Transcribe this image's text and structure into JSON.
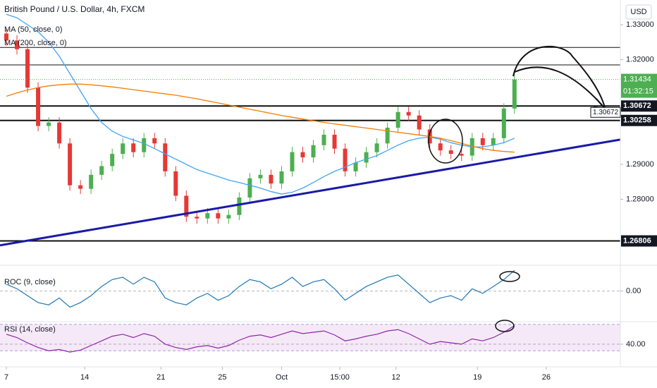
{
  "chart_data": [
    {
      "type": "candlestick",
      "title": "British Pound / U.S. Dollar, 4h, FXCM",
      "currency": "USD",
      "countdown": "01:32:15",
      "up_color": "#4caf50",
      "down_color": "#e53935",
      "open": [
        1.3275,
        1.3255,
        1.323,
        1.312,
        1.301,
        1.302,
        1.296,
        1.284,
        1.283,
        1.287,
        1.2895,
        1.293,
        1.296,
        1.2935,
        1.2975,
        1.296,
        1.288,
        1.281,
        1.275,
        1.2745,
        1.276,
        1.2745,
        1.2755,
        1.2805,
        1.286,
        1.287,
        1.2845,
        1.288,
        1.2935,
        1.292,
        1.2955,
        1.2985,
        1.2945,
        1.288,
        1.2905,
        1.2935,
        1.296,
        1.3005,
        1.305,
        1.304,
        1.3,
        1.296,
        1.294,
        1.293,
        1.2925,
        1.2975,
        1.2955,
        1.2975,
        1.306
      ],
      "high": [
        1.329,
        1.327,
        1.3245,
        1.3135,
        1.3035,
        1.3035,
        1.2975,
        1.2855,
        1.2885,
        1.291,
        1.2945,
        1.2975,
        1.2975,
        1.299,
        1.299,
        1.2975,
        1.2895,
        1.2825,
        1.2765,
        1.2775,
        1.2775,
        1.277,
        1.282,
        1.2875,
        1.2885,
        1.2885,
        1.2895,
        1.295,
        1.295,
        1.297,
        1.3,
        1.3,
        1.296,
        1.292,
        1.295,
        1.2975,
        1.302,
        1.3065,
        1.3065,
        1.3055,
        1.3015,
        1.2975,
        1.2955,
        1.2945,
        1.299,
        1.299,
        1.299,
        1.3075,
        1.316
      ],
      "low": [
        1.324,
        1.3215,
        1.3105,
        1.2995,
        1.2995,
        1.2945,
        1.2825,
        1.2815,
        1.2815,
        1.2855,
        1.288,
        1.2915,
        1.292,
        1.292,
        1.2945,
        1.2865,
        1.2795,
        1.2735,
        1.273,
        1.273,
        1.273,
        1.273,
        1.274,
        1.279,
        1.2845,
        1.283,
        1.283,
        1.2865,
        1.2905,
        1.2905,
        1.294,
        1.293,
        1.2865,
        1.2865,
        1.289,
        1.292,
        1.2945,
        1.299,
        1.3025,
        1.2985,
        1.2945,
        1.2925,
        1.2915,
        1.291,
        1.291,
        1.294,
        1.294,
        1.296,
        1.3045
      ],
      "close": [
        1.3255,
        1.323,
        1.312,
        1.301,
        1.302,
        1.296,
        1.284,
        1.283,
        1.287,
        1.2895,
        1.293,
        1.296,
        1.2935,
        1.2975,
        1.296,
        1.288,
        1.281,
        1.275,
        1.2745,
        1.276,
        1.2745,
        1.2755,
        1.2805,
        1.286,
        1.287,
        1.2845,
        1.288,
        1.2935,
        1.292,
        1.2955,
        1.2985,
        1.2945,
        1.288,
        1.2905,
        1.2935,
        1.296,
        1.3005,
        1.305,
        1.304,
        1.3,
        1.296,
        1.294,
        1.293,
        1.2925,
        1.2975,
        1.2955,
        1.2975,
        1.306,
        1.31434
      ],
      "series": [
        {
          "name": "MA (50, close, 0)",
          "color": "#42a5f5",
          "values": [
            1.333,
            1.332,
            1.33,
            1.328,
            1.325,
            1.321,
            1.316,
            1.311,
            1.306,
            1.302,
            1.2995,
            1.298,
            1.297,
            1.296,
            1.2945,
            1.293,
            1.2915,
            1.29,
            1.2885,
            1.2875,
            1.2865,
            1.2855,
            1.2848,
            1.284,
            1.2832,
            1.2822,
            1.2815,
            1.282,
            1.2832,
            1.2848,
            1.2865,
            1.288,
            1.2892,
            1.2905,
            1.2915,
            1.2925,
            1.294,
            1.2955,
            1.2968,
            1.2975,
            1.2978,
            1.2972,
            1.2962,
            1.2955,
            1.295,
            1.295,
            1.2955,
            1.2962,
            1.2975
          ]
        },
        {
          "name": "MA (200, close, 0)",
          "color": "#f57c00",
          "values": [
            1.3095,
            1.3105,
            1.3113,
            1.312,
            1.3125,
            1.3128,
            1.313,
            1.313,
            1.3128,
            1.3125,
            1.3122,
            1.3118,
            1.3114,
            1.311,
            1.3106,
            1.3102,
            1.3098,
            1.3093,
            1.3088,
            1.3082,
            1.3076,
            1.307,
            1.3064,
            1.3058,
            1.3052,
            1.3046,
            1.304,
            1.3035,
            1.303,
            1.3025,
            1.302,
            1.3016,
            1.3012,
            1.3008,
            1.3004,
            1.3,
            1.2996,
            1.2992,
            1.2988,
            1.2984,
            1.298,
            1.2975,
            1.2968,
            1.296,
            1.2952,
            1.2945,
            1.294,
            1.2937,
            1.2935
          ]
        }
      ],
      "levels": [
        {
          "value": 1.3235
        },
        {
          "value": 1.3185
        },
        {
          "value": 1.30672,
          "label": "1.30672"
        },
        {
          "value": 1.30258,
          "label": "1.30258"
        },
        {
          "value": 1.26806,
          "label": "1.26806"
        }
      ],
      "trendline": {
        "x": [
          -0.6,
          58
        ],
        "y": [
          1.2668,
          1.2971
        ],
        "color": "#1a1aa8"
      },
      "xlim": [
        -0.6,
        58
      ],
      "xticks": [
        {
          "value": 0,
          "label": "7"
        },
        {
          "value": 7.4,
          "label": "14"
        },
        {
          "value": 14.6,
          "label": "21"
        },
        {
          "value": 20.4,
          "label": "25"
        },
        {
          "value": 26,
          "label": "Oct"
        },
        {
          "value": 31.5,
          "label": "15:00"
        },
        {
          "value": 36.8,
          "label": "12"
        },
        {
          "value": 44.5,
          "label": "19"
        },
        {
          "value": 51,
          "label": "26"
        }
      ],
      "ylim": [
        1.2623,
        1.3371
      ],
      "yticks": [
        {
          "value": 1.33,
          "label": "1.33000"
        },
        {
          "value": 1.32,
          "label": "1.32000"
        },
        {
          "value": 1.29,
          "label": "1.29000"
        },
        {
          "value": 1.28,
          "label": "1.28000"
        }
      ]
    },
    {
      "type": "line",
      "title": "ROC (9, close)",
      "color": "#1f77b4",
      "values": [
        0.3,
        0.1,
        -0.2,
        -0.5,
        -0.6,
        -0.3,
        -0.7,
        -0.5,
        -0.2,
        0.2,
        0.5,
        0.6,
        0.3,
        0.6,
        0.4,
        -0.3,
        -0.5,
        -0.6,
        -0.3,
        -0.1,
        -0.4,
        -0.2,
        0.2,
        0.5,
        0.4,
        0.1,
        0.3,
        0.6,
        0.2,
        0.4,
        0.5,
        0.1,
        -0.4,
        -0.1,
        0.2,
        0.4,
        0.6,
        0.7,
        0.3,
        -0.1,
        -0.5,
        -0.3,
        -0.2,
        -0.4,
        0.1,
        -0.1,
        0.2,
        0.5,
        0.9
      ],
      "ylim": [
        -1.3,
        1.0
      ],
      "yticks": [
        {
          "value": 0,
          "label": "0.00"
        }
      ]
    },
    {
      "type": "line",
      "title": "RSI (14, close)",
      "color": "#8e24aa",
      "values": [
        55,
        50,
        42,
        35,
        30,
        32,
        28,
        31,
        38,
        45,
        52,
        55,
        50,
        56,
        52,
        40,
        35,
        32,
        36,
        38,
        34,
        38,
        46,
        52,
        54,
        50,
        55,
        60,
        56,
        58,
        60,
        54,
        45,
        48,
        52,
        55,
        60,
        62,
        56,
        48,
        40,
        44,
        42,
        40,
        48,
        45,
        50,
        58,
        68
      ],
      "band": [
        30,
        70
      ],
      "ylim": [
        10,
        74
      ],
      "yticks": [
        {
          "value": 40,
          "label": "40.00"
        }
      ]
    }
  ]
}
